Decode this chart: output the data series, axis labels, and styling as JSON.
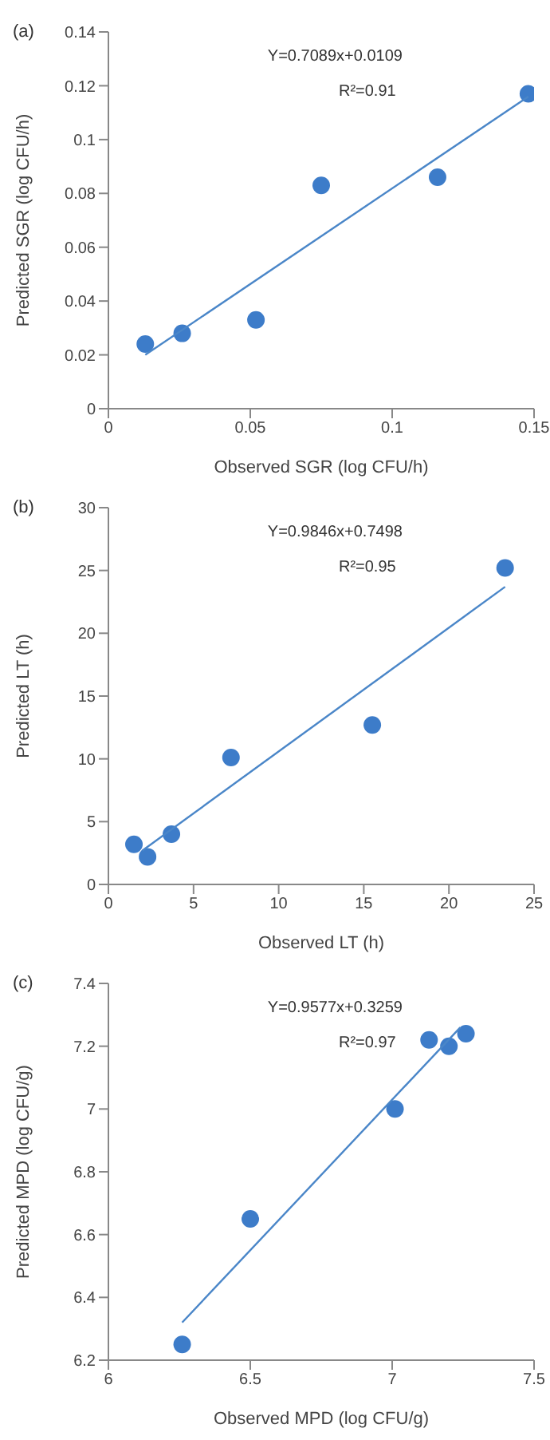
{
  "chart_data": [
    {
      "type": "scatter",
      "title": "(a)",
      "xlabel": "Observed SGR (log CFU/h)",
      "ylabel": "Predicted SGR (log CFU/h)",
      "xlim": [
        0,
        0.15
      ],
      "xticks": [
        0,
        0.05,
        0.1,
        0.15
      ],
      "ylim": [
        0,
        0.14
      ],
      "yticks": [
        0,
        0.02,
        0.04,
        0.06,
        0.08,
        0.1,
        0.12,
        0.14
      ],
      "grid": false,
      "annotations": [
        "Y=0.7089x+0.0109",
        "R²=0.91"
      ],
      "series": [
        {
          "type": "scatter",
          "color": "#3d7cc9",
          "marker": "circle",
          "x": [
            0.013,
            0.026,
            0.052,
            0.075,
            0.116,
            0.148
          ],
          "values": [
            0.024,
            0.028,
            0.033,
            0.083,
            0.086,
            0.117
          ]
        },
        {
          "type": "line",
          "color": "#4a86c8",
          "marker": "none",
          "x": [
            0.013,
            0.148
          ],
          "values": [
            0.02,
            0.116
          ]
        }
      ]
    },
    {
      "type": "scatter",
      "title": "(b)",
      "xlabel": "Observed LT (h)",
      "ylabel": "Predicted LT (h)",
      "xlim": [
        0,
        25
      ],
      "xticks": [
        0,
        5,
        10,
        15,
        20,
        25
      ],
      "ylim": [
        0,
        30
      ],
      "yticks": [
        0,
        5,
        10,
        15,
        20,
        25,
        30
      ],
      "grid": false,
      "annotations": [
        "Y=0.9846x+0.7498",
        "R²=0.95"
      ],
      "series": [
        {
          "type": "scatter",
          "color": "#3d7cc9",
          "marker": "circle",
          "x": [
            1.5,
            2.3,
            3.7,
            7.2,
            15.5,
            23.3
          ],
          "values": [
            3.2,
            2.2,
            4.0,
            10.1,
            12.7,
            25.2
          ]
        },
        {
          "type": "line",
          "color": "#4a86c8",
          "marker": "none",
          "x": [
            2.0,
            23.3
          ],
          "values": [
            2.7,
            23.7
          ]
        }
      ]
    },
    {
      "type": "scatter",
      "title": "(c)",
      "xlabel": "Observed MPD (log CFU/g)",
      "ylabel": "Predicted MPD (log CFU/g)",
      "xlim": [
        6,
        7.5
      ],
      "xticks": [
        6,
        6.5,
        7,
        7.5
      ],
      "ylim": [
        6.2,
        7.4
      ],
      "yticks": [
        6.2,
        6.4,
        6.6,
        6.8,
        7,
        7.2,
        7.4
      ],
      "grid": false,
      "annotations": [
        "Y=0.9577x+0.3259",
        "R²=0.97"
      ],
      "series": [
        {
          "type": "scatter",
          "color": "#3d7cc9",
          "marker": "circle",
          "x": [
            6.26,
            6.5,
            7.01,
            7.13,
            7.2,
            7.26
          ],
          "values": [
            6.25,
            6.65,
            7.0,
            7.22,
            7.2,
            7.24
          ]
        },
        {
          "type": "line",
          "color": "#4a86c8",
          "marker": "none",
          "x": [
            6.26,
            7.24
          ],
          "values": [
            6.32,
            7.26
          ]
        }
      ]
    }
  ]
}
